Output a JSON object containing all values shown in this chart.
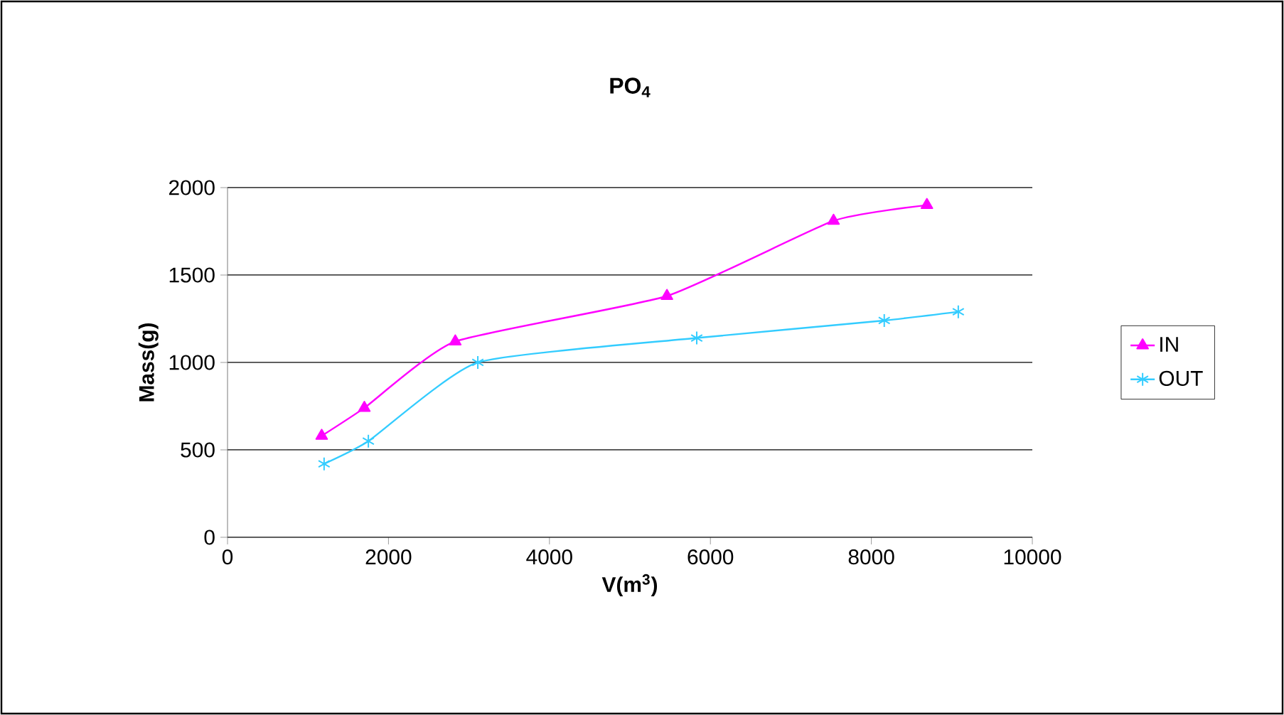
{
  "chart_data": {
    "type": "line",
    "title": "PO$_{4}$",
    "xlabel": "V(m$^{3}$)",
    "ylabel": "Mass(g)",
    "xlim": [
      0,
      10000
    ],
    "ylim": [
      0,
      2000
    ],
    "xticks": [
      0,
      2000,
      4000,
      6000,
      8000,
      10000
    ],
    "yticks": [
      0,
      500,
      1000,
      1500,
      2000
    ],
    "grid": "y",
    "legend": "right",
    "line_style": "solid",
    "series": [
      {
        "name": "IN",
        "color": "#ff00ff",
        "marker": "triangle",
        "x": [
          1170,
          1700,
          2830,
          5460,
          7530,
          8690
        ],
        "values": [
          580,
          740,
          1120,
          1380,
          1810,
          1900
        ]
      },
      {
        "name": "OUT",
        "color": "#33ccff",
        "marker": "cross",
        "x": [
          1200,
          1750,
          3110,
          5830,
          8160,
          9080
        ],
        "values": [
          420,
          550,
          1000,
          1140,
          1240,
          1290
        ]
      }
    ]
  }
}
